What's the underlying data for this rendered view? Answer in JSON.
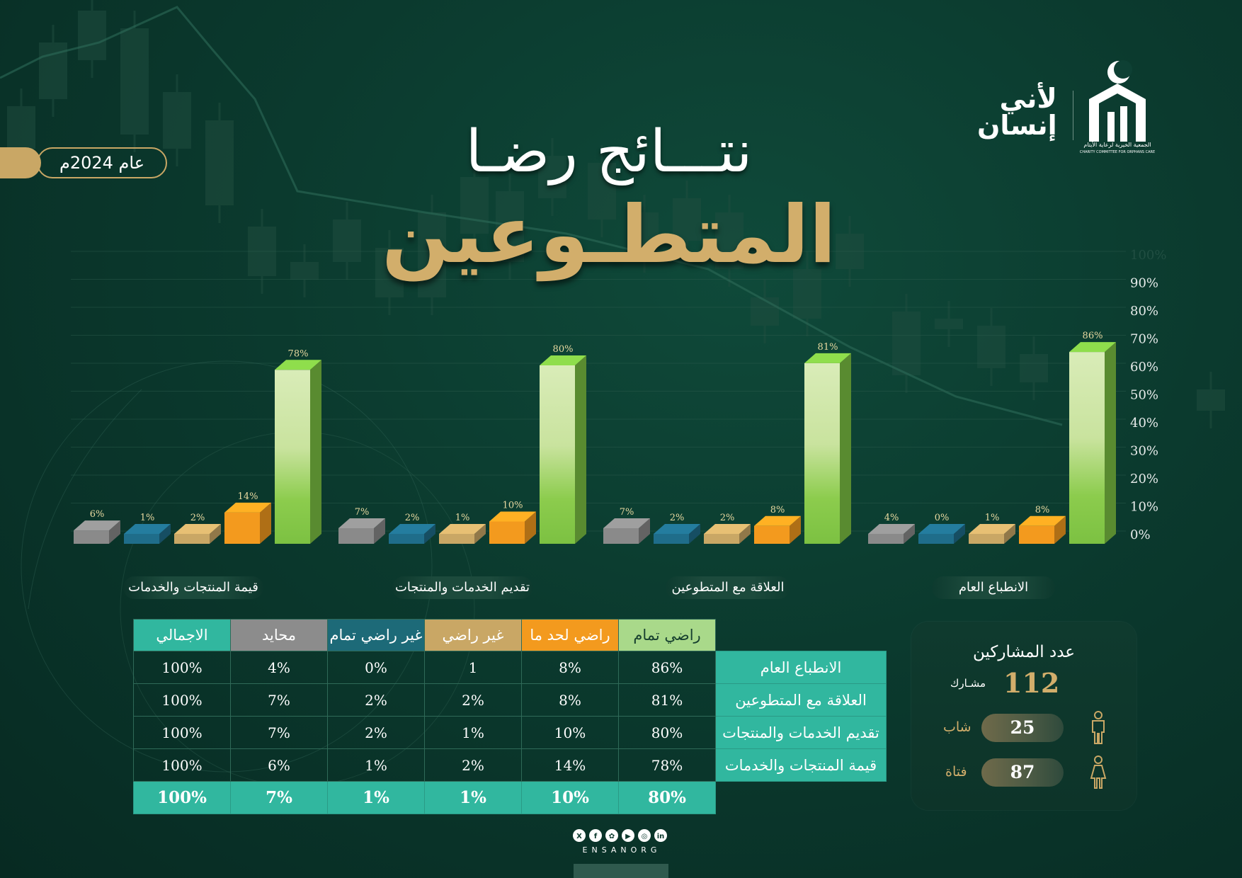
{
  "header": {
    "title_line1": "نتـــائج رضـا",
    "title_line2": "المتطـوعين",
    "year": "عام 2024م"
  },
  "logo": {
    "brand_ar": "انسان",
    "slogan_line1": "لأني",
    "slogan_line2": "إنسان",
    "tagline_ar": "الجمعية الخيرية لرعاية الأيتام",
    "tagline_en": "CHARITY COMMITTEE FOR ORPHANS CARE"
  },
  "chart_data": {
    "type": "bar",
    "categories": [
      "الانطباع العام",
      "العلاقة مع المتطوعين",
      "تقديم الخدمات والمنتجات",
      "قيمة المنتجات والخدمات"
    ],
    "series": [
      {
        "name": "راضي تمام",
        "values": [
          86,
          81,
          80,
          78
        ],
        "labels": [
          "86%",
          "81%",
          "80%",
          "78%"
        ]
      },
      {
        "name": "راضي لحد ما",
        "values": [
          8,
          8,
          10,
          14
        ],
        "labels": [
          "8%",
          "8%",
          "10%",
          "14%"
        ]
      },
      {
        "name": "غير راضي",
        "values": [
          1,
          2,
          1,
          2
        ],
        "labels": [
          "1%",
          "2%",
          "1%",
          "2%"
        ]
      },
      {
        "name": "غير راضي تمام",
        "values": [
          0,
          2,
          2,
          1
        ],
        "labels": [
          "0%",
          "2%",
          "2%",
          "1%"
        ]
      },
      {
        "name": "محايد",
        "values": [
          4,
          7,
          7,
          6
        ],
        "labels": [
          "4%",
          "7%",
          "7%",
          "6%"
        ]
      }
    ],
    "y_ticks": [
      "0%",
      "10%",
      "20%",
      "30%",
      "40%",
      "50%",
      "60%",
      "70%",
      "80%",
      "90%",
      "100%"
    ],
    "ylim": [
      0,
      100
    ],
    "colors": {
      "راضي تمام": "#7cc142",
      "راضي لحد ما": "#f39a1e",
      "غير راضي": "#c9a765",
      "غير راضي تمام": "#1f6d8a",
      "محايد": "#8a8a8a"
    }
  },
  "table": {
    "columns": [
      "راضي تمام",
      "راضي لحد ما",
      "غير راضي",
      "غير راضي تمام",
      "محايد",
      "الاجمالي"
    ],
    "column_colors": [
      "#a9d98a",
      "#f39a1e",
      "#c9a765",
      "#1d6a78",
      "#8c8c8c",
      "#31b79f"
    ],
    "rows": [
      {
        "label": "الانطباع العام",
        "values": [
          "86%",
          "8%",
          "1",
          "0%",
          "4%",
          "100%"
        ]
      },
      {
        "label": "العلاقة مع المتطوعين",
        "values": [
          "81%",
          "8%",
          "2%",
          "2%",
          "7%",
          "100%"
        ]
      },
      {
        "label": "تقديم الخدمات والمنتجات",
        "values": [
          "80%",
          "10%",
          "1%",
          "2%",
          "7%",
          "100%"
        ]
      },
      {
        "label": "قيمة المنتجات والخدمات",
        "values": [
          "78%",
          "14%",
          "2%",
          "1%",
          "6%",
          "100%"
        ]
      }
    ],
    "total": [
      "80%",
      "10%",
      "1%",
      "1%",
      "7%",
      "100%"
    ]
  },
  "participants": {
    "title": "عدد المشاركين",
    "total": "112",
    "total_label": "مشـارك",
    "male_count": "25",
    "male_label": "شاب",
    "female_count": "87",
    "female_label": "فتاة"
  },
  "footer": {
    "handle": "ENSANORG",
    "social_icons": [
      "x-icon",
      "facebook-icon",
      "snapchat-icon",
      "youtube-icon",
      "instagram-icon",
      "linkedin-icon"
    ]
  }
}
